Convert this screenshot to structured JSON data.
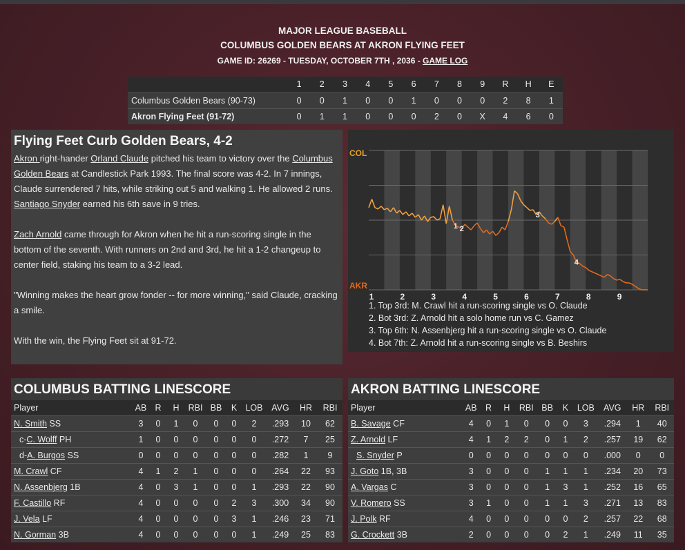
{
  "header": {
    "league": "MAJOR LEAGUE BASEBALL",
    "matchup": "COLUMBUS GOLDEN BEARS AT AKRON FLYING FEET",
    "game_info": "GAME ID: 26269 - TUESDAY, OCTOBER 7TH , 2036 - ",
    "game_log_link": "GAME LOG"
  },
  "linescore": {
    "columns": [
      "1",
      "2",
      "3",
      "4",
      "5",
      "6",
      "7",
      "8",
      "9",
      "R",
      "H",
      "E"
    ],
    "rows": [
      {
        "team": "Columbus Golden Bears (90-73)",
        "values": [
          "0",
          "0",
          "1",
          "0",
          "0",
          "1",
          "0",
          "0",
          "0",
          "2",
          "8",
          "1"
        ]
      },
      {
        "team": "Akron Flying Feet (91-72)",
        "values": [
          "0",
          "1",
          "1",
          "0",
          "0",
          "0",
          "2",
          "0",
          "X",
          "4",
          "6",
          "0"
        ]
      }
    ]
  },
  "story": {
    "headline": "Flying Feet Curb Golden Bears, 4-2",
    "p1_a": "Akron ",
    "p1_b": " right-hander ",
    "p1_c": "Orland Claude",
    "p1_d": " pitched his team to victory over the ",
    "p1_e": "Columbus Golden Bears",
    "p1_f": " at Candlestick Park 1993. The final score was 4-2. In 7 innings, Claude surrendered 7 hits, while striking out 5 and walking 1. He allowed 2 runs. ",
    "p1_g": "Santiago Snyder",
    "p1_h": " earned his 6th save in 9 tries.",
    "p2_a": "Zach Arnold",
    "p2_b": " came through for Akron when he hit a run-scoring single in the bottom of the seventh. With runners on 2nd and 3rd, he hit a 1-2 changeup to center field, staking his team to a 3-2 lead.",
    "p3": "\"Winning makes the heart grow fonder -- for more winning,\" said Claude, cracking a smile.",
    "p4": "With the win, the Flying Feet sit at 91-72."
  },
  "chart_data": {
    "type": "line",
    "top_label": "COL",
    "bottom_label": "AKR",
    "x_ticks": [
      "1",
      "2",
      "3",
      "4",
      "5",
      "6",
      "7",
      "8",
      "9"
    ],
    "ylim": [
      -1,
      1
    ],
    "x": [
      0,
      0.1,
      0.2,
      0.3,
      0.4,
      0.5,
      0.6,
      0.7,
      0.8,
      0.9,
      1.0,
      1.1,
      1.2,
      1.3,
      1.4,
      1.5,
      1.6,
      1.7,
      1.8,
      1.9,
      2.0,
      2.1,
      2.2,
      2.3,
      2.4,
      2.5,
      2.6,
      2.7,
      2.8,
      2.9,
      3.0,
      3.1,
      3.2,
      3.3,
      3.4,
      3.5,
      3.6,
      3.7,
      3.8,
      3.9,
      4.0,
      4.1,
      4.2,
      4.3,
      4.4,
      4.5,
      4.6,
      4.7,
      4.8,
      4.9,
      5.0,
      5.1,
      5.2,
      5.3,
      5.4,
      5.5,
      5.6,
      5.7,
      5.8,
      5.9,
      6.0,
      6.1,
      6.2,
      6.3,
      6.4,
      6.5,
      6.6,
      6.7,
      6.8,
      6.9,
      7.0,
      7.1,
      7.2,
      7.3,
      7.4,
      7.5,
      7.6,
      7.7,
      7.8,
      7.9,
      8.0,
      8.1,
      8.2,
      8.3,
      8.4,
      8.5,
      8.6,
      8.7,
      8.8,
      8.9,
      9.0
    ],
    "y": [
      0.18,
      0.3,
      0.18,
      0.16,
      0.2,
      0.15,
      0.17,
      0.12,
      0.18,
      0.1,
      0.14,
      0.08,
      0.12,
      0.06,
      0.1,
      0.04,
      0.08,
      0.0,
      0.06,
      -0.02,
      0.04,
      0.05,
      0.0,
      0.02,
      0.22,
      -0.05,
      0.2,
      0.0,
      -0.08,
      -0.1,
      -0.12,
      -0.06,
      -0.1,
      -0.14,
      -0.08,
      -0.04,
      -0.12,
      -0.18,
      -0.14,
      -0.2,
      -0.16,
      -0.22,
      -0.18,
      -0.1,
      -0.14,
      -0.02,
      0.15,
      0.42,
      0.38,
      0.28,
      0.22,
      0.18,
      0.14,
      0.15,
      0.08,
      0.12,
      0.06,
      0.02,
      -0.04,
      -0.06,
      -0.02,
      0.04,
      -0.08,
      -0.1,
      -0.28,
      -0.45,
      -0.5,
      -0.6,
      -0.62,
      -0.66,
      -0.68,
      -0.72,
      -0.74,
      -0.76,
      -0.78,
      -0.8,
      -0.82,
      -0.78,
      -0.8,
      -0.84,
      -0.86,
      -0.85,
      -0.88,
      -0.9,
      -0.9,
      -0.92,
      -0.95,
      -0.98,
      -1.0,
      -1.0,
      -1.0
    ],
    "annotations": [
      {
        "label": "1",
        "x": 2.8
      },
      {
        "label": "2",
        "x": 3.0
      },
      {
        "label": "3",
        "x": 5.45
      },
      {
        "label": "4",
        "x": 6.7
      }
    ],
    "events": [
      "1. Top 3rd: M. Crawl hit a run-scoring single vs O. Claude",
      "2. Bot 3rd: Z. Arnold hit a solo home run vs C. Gamez",
      "3. Top 6th: N. Assenbjerg hit a run-scoring single vs O. Claude",
      "4. Bot 7th: Z. Arnold hit a run-scoring single vs B. Beshirs"
    ],
    "colors": {
      "away": "#f0a040",
      "home": "#e06a20"
    }
  },
  "columbus": {
    "title": "COLUMBUS BATTING LINESCORE",
    "headers": [
      "Player",
      "AB",
      "R",
      "H",
      "RBI",
      "BB",
      "K",
      "LOB",
      "AVG",
      "HR",
      "RBI"
    ],
    "rows": [
      {
        "prefix": "",
        "name": "N. Smith",
        "pos": " SS",
        "stats": [
          "3",
          "0",
          "1",
          "0",
          "0",
          "0",
          "2",
          ".293",
          "10",
          "62"
        ]
      },
      {
        "prefix": "c-",
        "name": "C. Wolff",
        "pos": " PH",
        "stats": [
          "1",
          "0",
          "0",
          "0",
          "0",
          "0",
          "0",
          ".272",
          "7",
          "25"
        ]
      },
      {
        "prefix": "d-",
        "name": "A. Burgos",
        "pos": " SS",
        "stats": [
          "0",
          "0",
          "0",
          "0",
          "0",
          "0",
          "0",
          ".282",
          "1",
          "9"
        ]
      },
      {
        "prefix": "",
        "name": "M. Crawl",
        "pos": " CF",
        "stats": [
          "4",
          "1",
          "2",
          "1",
          "0",
          "0",
          "0",
          ".264",
          "22",
          "93"
        ]
      },
      {
        "prefix": "",
        "name": "N. Assenbjerg",
        "pos": " 1B",
        "stats": [
          "4",
          "0",
          "3",
          "1",
          "0",
          "0",
          "1",
          ".293",
          "22",
          "90"
        ]
      },
      {
        "prefix": "",
        "name": "F. Castillo",
        "pos": " RF",
        "stats": [
          "4",
          "0",
          "0",
          "0",
          "0",
          "2",
          "3",
          ".300",
          "34",
          "90"
        ]
      },
      {
        "prefix": "",
        "name": "J. Vela",
        "pos": " LF",
        "stats": [
          "4",
          "0",
          "0",
          "0",
          "0",
          "3",
          "1",
          ".246",
          "23",
          "71"
        ]
      },
      {
        "prefix": "",
        "name": "N. Gorman",
        "pos": " 3B",
        "stats": [
          "4",
          "0",
          "0",
          "0",
          "0",
          "0",
          "1",
          ".249",
          "25",
          "83"
        ]
      }
    ]
  },
  "akron": {
    "title": "AKRON BATTING LINESCORE",
    "headers": [
      "Player",
      "AB",
      "R",
      "H",
      "RBI",
      "BB",
      "K",
      "LOB",
      "AVG",
      "HR",
      "RBI"
    ],
    "rows": [
      {
        "prefix": "",
        "name": "B. Savage",
        "pos": " CF",
        "stats": [
          "4",
          "0",
          "1",
          "0",
          "0",
          "0",
          "3",
          ".294",
          "1",
          "40"
        ]
      },
      {
        "prefix": "",
        "name": "Z. Arnold",
        "pos": " LF",
        "stats": [
          "4",
          "1",
          "2",
          "2",
          "0",
          "1",
          "2",
          ".257",
          "19",
          "62"
        ]
      },
      {
        "prefix": "",
        "name": "S. Snyder",
        "pos": " P",
        "stats": [
          "0",
          "0",
          "0",
          "0",
          "0",
          "0",
          "0",
          ".000",
          "0",
          "0"
        ]
      },
      {
        "prefix": "",
        "name": "J. Goto",
        "pos": " 1B, 3B",
        "stats": [
          "3",
          "0",
          "0",
          "0",
          "1",
          "1",
          "1",
          ".234",
          "20",
          "73"
        ]
      },
      {
        "prefix": "",
        "name": "A. Vargas",
        "pos": " C",
        "stats": [
          "3",
          "0",
          "0",
          "0",
          "1",
          "3",
          "1",
          ".252",
          "16",
          "65"
        ]
      },
      {
        "prefix": "",
        "name": "V. Romero",
        "pos": " SS",
        "stats": [
          "3",
          "1",
          "0",
          "0",
          "1",
          "1",
          "3",
          ".271",
          "13",
          "83"
        ]
      },
      {
        "prefix": "",
        "name": "J. Polk",
        "pos": " RF",
        "stats": [
          "4",
          "0",
          "0",
          "0",
          "0",
          "0",
          "2",
          ".257",
          "22",
          "68"
        ]
      },
      {
        "prefix": "",
        "name": "G. Crockett",
        "pos": " 3B",
        "stats": [
          "2",
          "0",
          "0",
          "0",
          "0",
          "2",
          "1",
          ".249",
          "11",
          "35"
        ]
      }
    ]
  }
}
